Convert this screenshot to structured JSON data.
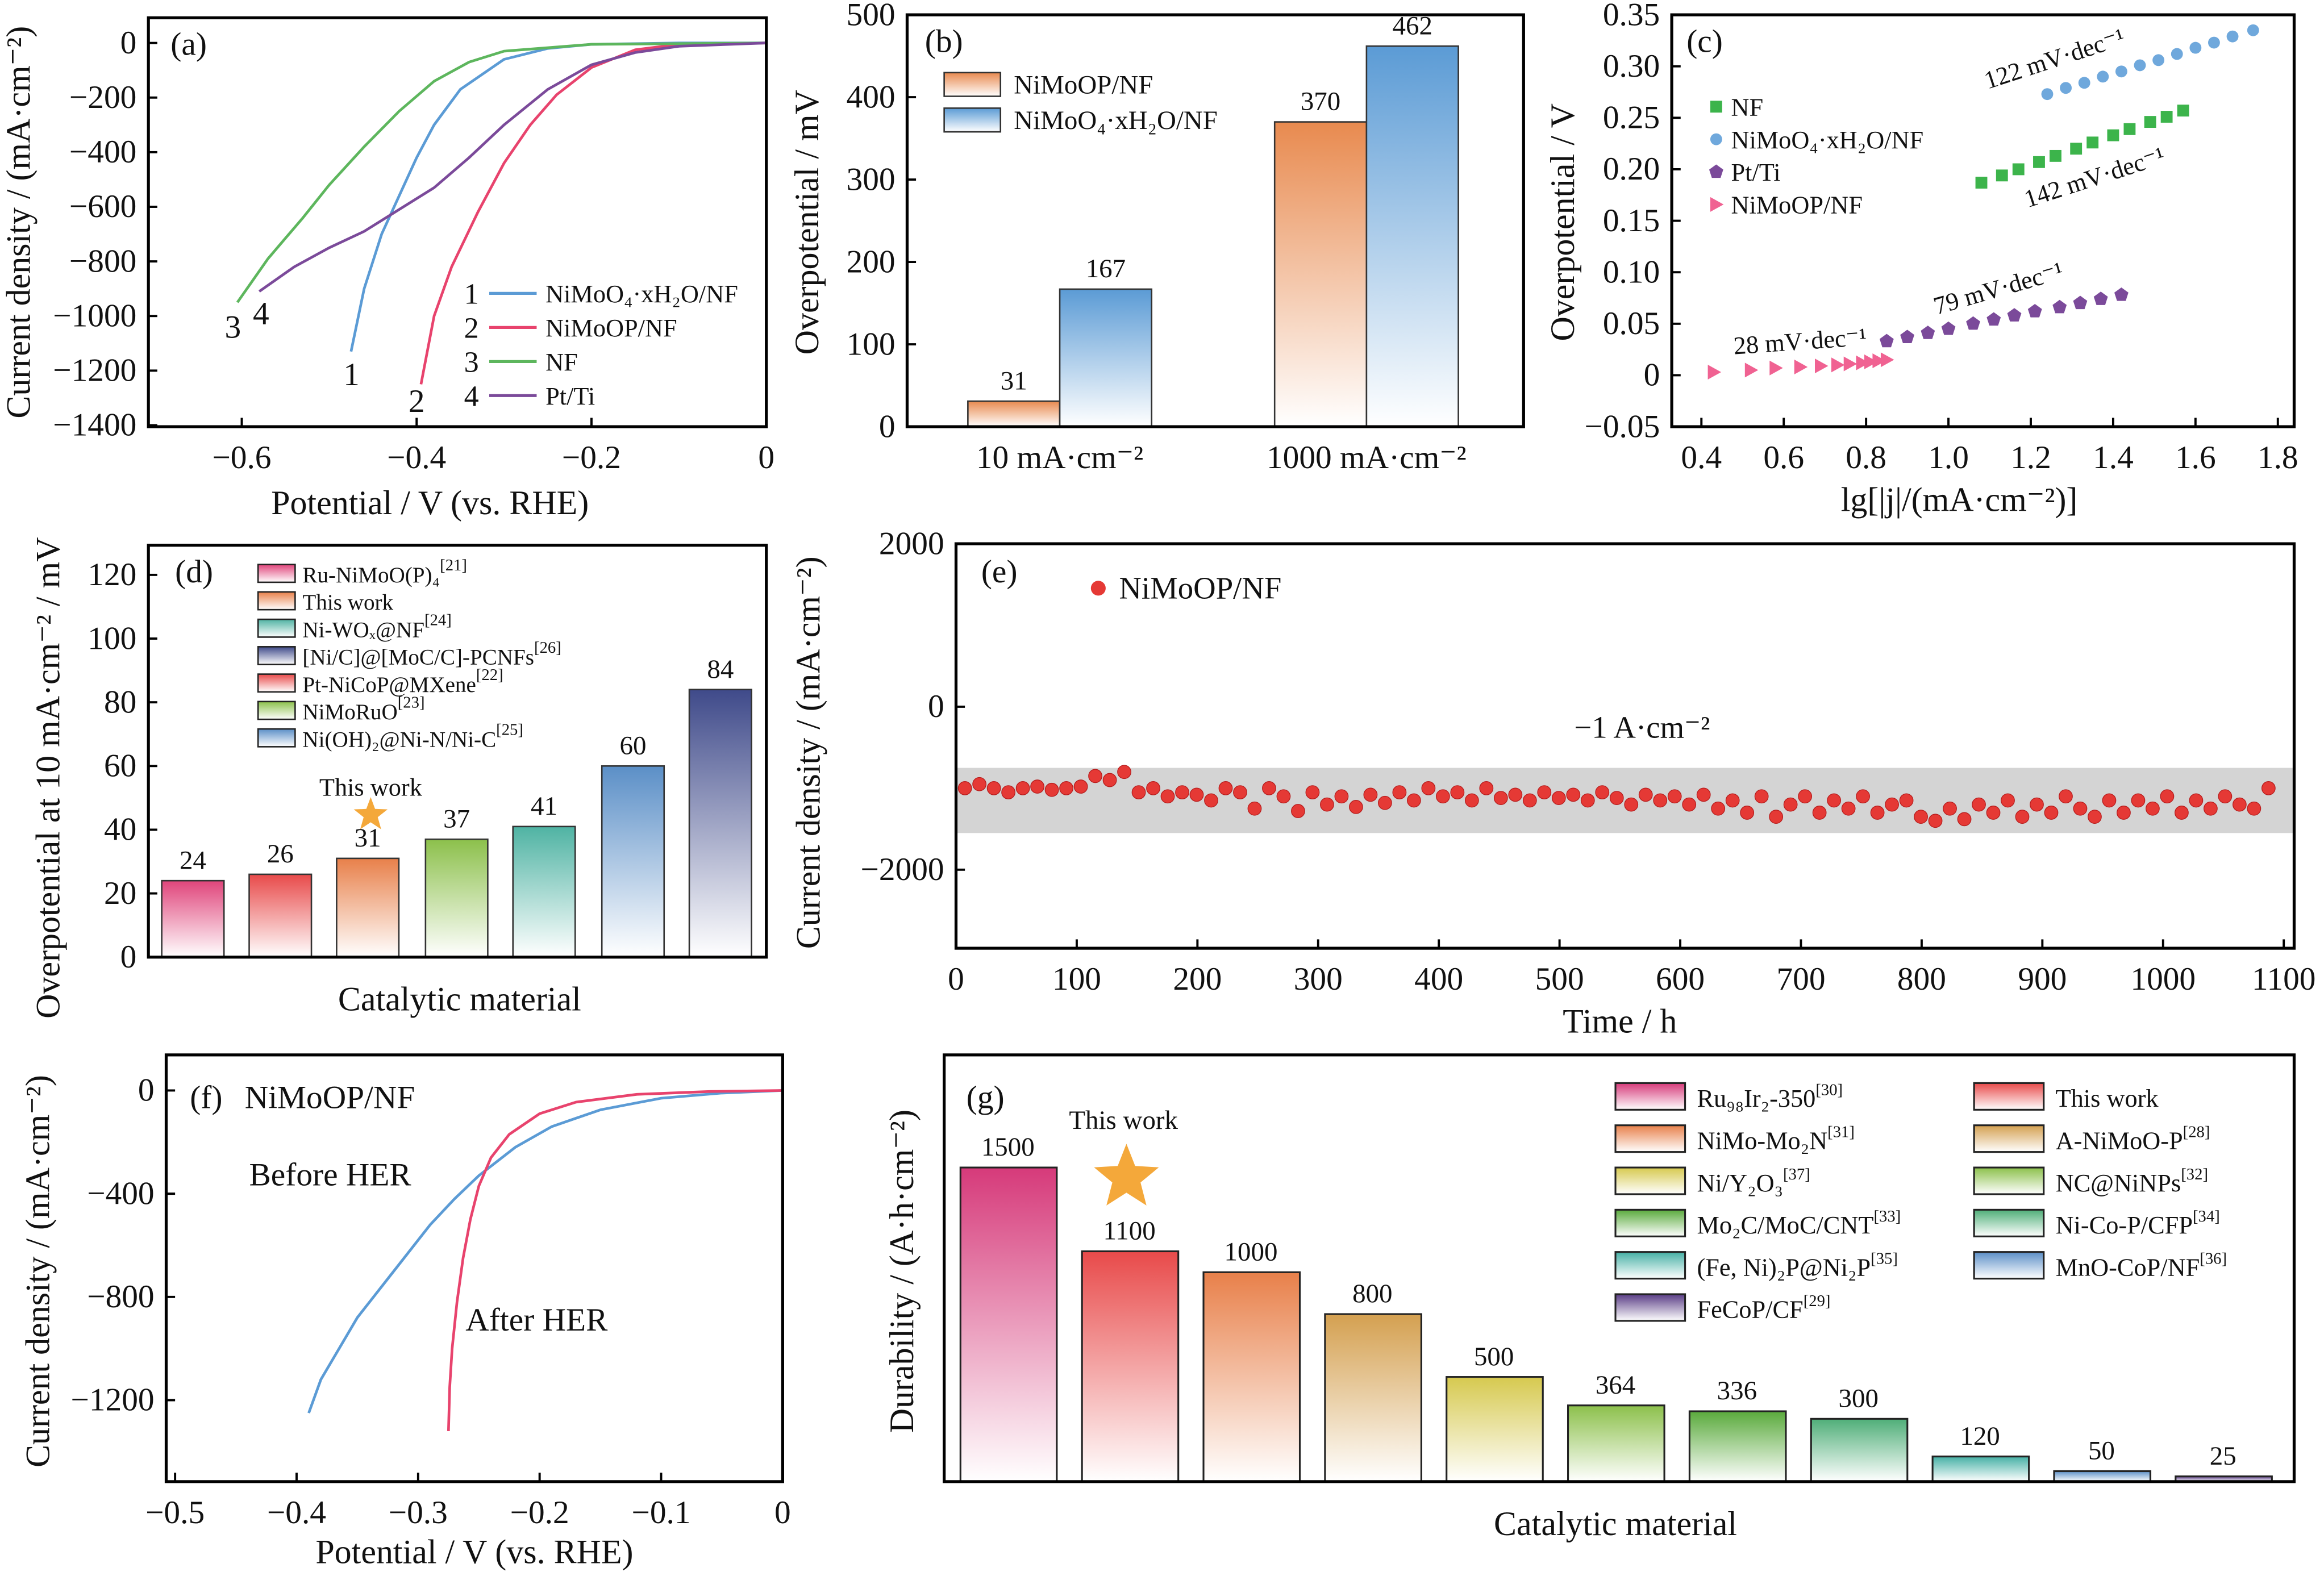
{
  "chart_data": [
    {
      "panel": "(a)",
      "type": "line",
      "xlabel": "Potential / V (vs. RHE)",
      "ylabel": "Current density / (mA·cm⁻²)",
      "xlim": [
        -0.7,
        0
      ],
      "ylim": [
        -1400,
        90
      ],
      "xticks": [
        -0.6,
        -0.4,
        -0.2,
        0
      ],
      "yticks": [
        0,
        -200,
        -400,
        -600,
        -800,
        -1000,
        -1200,
        -1400
      ],
      "series": [
        {
          "name": "NiMoO₄·xH₂O/NF",
          "num": "1",
          "color": "#5b9bd5",
          "points": [
            [
              -0.475,
              -1130
            ],
            [
              -0.46,
              -900
            ],
            [
              -0.44,
              -700
            ],
            [
              -0.42,
              -560
            ],
            [
              -0.4,
              -420
            ],
            [
              -0.38,
              -300
            ],
            [
              -0.35,
              -170
            ],
            [
              -0.3,
              -60
            ],
            [
              -0.25,
              -20
            ],
            [
              -0.2,
              -5
            ],
            [
              -0.1,
              0
            ],
            [
              0,
              0
            ]
          ]
        },
        {
          "name": "NiMoOP/NF",
          "num": "2",
          "color": "#e8436d",
          "points": [
            [
              -0.395,
              -1250
            ],
            [
              -0.38,
              -1000
            ],
            [
              -0.36,
              -820
            ],
            [
              -0.33,
              -620
            ],
            [
              -0.3,
              -440
            ],
            [
              -0.27,
              -300
            ],
            [
              -0.24,
              -190
            ],
            [
              -0.2,
              -90
            ],
            [
              -0.15,
              -25
            ],
            [
              -0.1,
              -5
            ],
            [
              0,
              0
            ]
          ]
        },
        {
          "name": "NF",
          "num": "3",
          "color": "#5db65d",
          "points": [
            [
              -0.605,
              -950
            ],
            [
              -0.57,
              -790
            ],
            [
              -0.53,
              -640
            ],
            [
              -0.5,
              -520
            ],
            [
              -0.46,
              -380
            ],
            [
              -0.42,
              -250
            ],
            [
              -0.38,
              -140
            ],
            [
              -0.34,
              -70
            ],
            [
              -0.3,
              -30
            ],
            [
              -0.2,
              -5
            ],
            [
              0,
              0
            ]
          ]
        },
        {
          "name": "Pt/Ti",
          "num": "4",
          "color": "#7b4a9a",
          "points": [
            [
              -0.58,
              -910
            ],
            [
              -0.54,
              -820
            ],
            [
              -0.5,
              -750
            ],
            [
              -0.46,
              -690
            ],
            [
              -0.42,
              -610
            ],
            [
              -0.38,
              -530
            ],
            [
              -0.34,
              -420
            ],
            [
              -0.3,
              -300
            ],
            [
              -0.25,
              -170
            ],
            [
              -0.2,
              -80
            ],
            [
              -0.15,
              -35
            ],
            [
              -0.1,
              -12
            ],
            [
              0,
              0
            ]
          ]
        }
      ]
    },
    {
      "panel": "(b)",
      "type": "bar",
      "ylabel": "Overpotential / mV",
      "ylim": [
        0,
        500
      ],
      "yticks": [
        0,
        100,
        200,
        300,
        400,
        500
      ],
      "categories": [
        "10 mA·cm⁻²",
        "1000 mA·cm⁻²"
      ],
      "series": [
        {
          "name": "NiMoOP/NF",
          "color": "#e88a4f",
          "values": [
            31,
            370
          ]
        },
        {
          "name": "NiMoO₄·xH₂O/NF",
          "color": "#5b9bd5",
          "values": [
            167,
            462
          ]
        }
      ]
    },
    {
      "panel": "(c)",
      "type": "scatter",
      "xlabel": "lg[|j|/(mA·cm⁻²)]",
      "ylabel": "Overpotential / V",
      "xlim": [
        0.33,
        1.84
      ],
      "ylim": [
        -0.05,
        0.35
      ],
      "xticks": [
        0.4,
        0.6,
        0.8,
        1.0,
        1.2,
        1.4,
        1.6,
        1.8
      ],
      "yticks": [
        -0.05,
        0,
        0.05,
        0.1,
        0.15,
        0.2,
        0.25,
        0.3,
        0.35
      ],
      "series": [
        {
          "name": "NF",
          "marker": "square",
          "color": "#3cb44b",
          "slope": "142 mV·dec⁻¹",
          "points": [
            [
              1.08,
              0.187
            ],
            [
              1.13,
              0.194
            ],
            [
              1.17,
              0.2
            ],
            [
              1.22,
              0.207
            ],
            [
              1.26,
              0.213
            ],
            [
              1.31,
              0.22
            ],
            [
              1.35,
              0.226
            ],
            [
              1.4,
              0.233
            ],
            [
              1.44,
              0.239
            ],
            [
              1.49,
              0.246
            ],
            [
              1.53,
              0.251
            ],
            [
              1.57,
              0.257
            ]
          ]
        },
        {
          "name": "NiMoO₄·xH₂O/NF",
          "marker": "circle",
          "color": "#6fa8dc",
          "slope": "122 mV·dec⁻¹",
          "points": [
            [
              1.24,
              0.273
            ],
            [
              1.285,
              0.279
            ],
            [
              1.33,
              0.284
            ],
            [
              1.375,
              0.29
            ],
            [
              1.42,
              0.295
            ],
            [
              1.465,
              0.301
            ],
            [
              1.51,
              0.306
            ],
            [
              1.555,
              0.312
            ],
            [
              1.6,
              0.318
            ],
            [
              1.645,
              0.323
            ],
            [
              1.69,
              0.329
            ],
            [
              1.74,
              0.335
            ]
          ]
        },
        {
          "name": "Pt/Ti",
          "marker": "pentagon",
          "color": "#7b4a9a",
          "slope": "79 mV·dec⁻¹",
          "points": [
            [
              0.85,
              0.033
            ],
            [
              0.9,
              0.037
            ],
            [
              0.95,
              0.041
            ],
            [
              1.0,
              0.045
            ],
            [
              1.06,
              0.05
            ],
            [
              1.11,
              0.054
            ],
            [
              1.16,
              0.058
            ],
            [
              1.21,
              0.062
            ],
            [
              1.27,
              0.066
            ],
            [
              1.32,
              0.07
            ],
            [
              1.37,
              0.074
            ],
            [
              1.42,
              0.078
            ]
          ]
        },
        {
          "name": "NiMoOP/NF",
          "marker": "triangle-right",
          "color": "#f06292",
          "slope": "28 mV·dec⁻¹",
          "points": [
            [
              0.43,
              0.003
            ],
            [
              0.52,
              0.005
            ],
            [
              0.58,
              0.007
            ],
            [
              0.64,
              0.008
            ],
            [
              0.69,
              0.009
            ],
            [
              0.73,
              0.01
            ],
            [
              0.76,
              0.011
            ],
            [
              0.79,
              0.012
            ],
            [
              0.81,
              0.013
            ],
            [
              0.83,
              0.014
            ],
            [
              0.85,
              0.015
            ]
          ]
        }
      ]
    },
    {
      "panel": "(d)",
      "type": "bar",
      "xlabel": "Catalytic material",
      "ylabel": "Overpotential at 10 mA·cm⁻² / mV",
      "ylim": [
        0,
        129
      ],
      "yticks": [
        0,
        20,
        40,
        60,
        80,
        100,
        120
      ],
      "annotation": "This work",
      "legend": [
        {
          "label": "Ru-NiMoO(P)₄",
          "ref": "[21]",
          "color": "#e0457b"
        },
        {
          "label": "This work",
          "ref": "",
          "color": "#e8804a",
          "highlight": true
        },
        {
          "label": "Ni-WOₓ@NF",
          "ref": "[24]",
          "color": "#4fb3a3"
        },
        {
          "label": "[Ni/C]@[MoC/C]-PCNFs",
          "ref": "[26]",
          "color": "#3f4a8a"
        },
        {
          "label": "Pt-NiCoP@MXene",
          "ref": "[22]",
          "color": "#e84a4a"
        },
        {
          "label": "NiMoRuO",
          "ref": "[23]",
          "color": "#8cc04b"
        },
        {
          "label": "Ni(OH)₂@Ni-N/Ni-C",
          "ref": "[25]",
          "color": "#5b8fc7"
        }
      ],
      "bars": [
        {
          "value": 24,
          "color": "#e0457b"
        },
        {
          "value": 26,
          "color": "#e84a4a"
        },
        {
          "value": 31,
          "color": "#e8804a"
        },
        {
          "value": 37,
          "color": "#8cc04b"
        },
        {
          "value": 41,
          "color": "#4fb3a3"
        },
        {
          "value": 60,
          "color": "#5b8fc7"
        },
        {
          "value": 84,
          "color": "#3f4a8a"
        }
      ]
    },
    {
      "panel": "(e)",
      "type": "scatter",
      "xlabel": "Time / h",
      "ylabel": "Current density / (mA·cm⁻²)",
      "xlim": [
        0,
        1100
      ],
      "ylim": [
        -2950,
        2000
      ],
      "xticks": [
        0,
        100,
        200,
        300,
        400,
        500,
        600,
        700,
        800,
        900,
        1000,
        1100
      ],
      "yticks": [
        2000,
        0,
        -2000
      ],
      "legend": "NiMoOP/NF",
      "annotation": "−1 A·cm⁻²",
      "band": [
        -750,
        -1550
      ],
      "color": "#e53935",
      "time_h": [
        0,
        12,
        24,
        36,
        48,
        60,
        72,
        84,
        96,
        108,
        120,
        132,
        144,
        156,
        168,
        180,
        192,
        204,
        216,
        228,
        240,
        252,
        264,
        276,
        288,
        300,
        312,
        324,
        336,
        348,
        360,
        372,
        384,
        396,
        408,
        420,
        432,
        444,
        456,
        468,
        480,
        492,
        504,
        516,
        528,
        540,
        552,
        564,
        576,
        588,
        600,
        612,
        624,
        636,
        648,
        660,
        672,
        684,
        696,
        708,
        720,
        732,
        744,
        756,
        768,
        780,
        792,
        804,
        816,
        828,
        840,
        852,
        864,
        876,
        888,
        900,
        912,
        924,
        936,
        948,
        960,
        972,
        984,
        996,
        1008,
        1020,
        1032,
        1044,
        1056,
        1068,
        1080
      ],
      "current": [
        -1000,
        -950,
        -1000,
        -1050,
        -1000,
        -980,
        -1020,
        -1000,
        -980,
        -850,
        -900,
        -800,
        -1050,
        -1000,
        -1100,
        -1050,
        -1080,
        -1150,
        -1000,
        -1050,
        -1250,
        -1000,
        -1100,
        -1280,
        -1050,
        -1200,
        -1100,
        -1230,
        -1080,
        -1180,
        -1050,
        -1150,
        -1000,
        -1100,
        -1050,
        -1150,
        -1000,
        -1120,
        -1080,
        -1150,
        -1050,
        -1120,
        -1080,
        -1150,
        -1050,
        -1120,
        -1200,
        -1080,
        -1150,
        -1100,
        -1200,
        -1080,
        -1250,
        -1150,
        -1300,
        -1100,
        -1350,
        -1200,
        -1100,
        -1300,
        -1150,
        -1250,
        -1100,
        -1300,
        -1200,
        -1150,
        -1350,
        -1400,
        -1250,
        -1380,
        -1200,
        -1300,
        -1150,
        -1350,
        -1200,
        -1300,
        -1100,
        -1250,
        -1350,
        -1150,
        -1300,
        -1150,
        -1250,
        -1100,
        -1300,
        -1150,
        -1250,
        -1100,
        -1200,
        -1250,
        -1000
      ]
    },
    {
      "panel": "(f)",
      "type": "line",
      "title": "NiMoOP/NF",
      "xlabel": "Potential / V (vs. RHE)",
      "ylabel": "Current density / (mA·cm⁻²)",
      "xlim": [
        -0.5,
        0
      ],
      "ylim": [
        -1500,
        140
      ],
      "xticks": [
        -0.5,
        -0.4,
        -0.3,
        -0.2,
        -0.1,
        0
      ],
      "yticks": [
        0,
        -400,
        -800,
        -1200
      ],
      "series": [
        {
          "name": "Before HER",
          "color": "#5b9bd5",
          "points": [
            [
              -0.39,
              -1250
            ],
            [
              -0.38,
              -1120
            ],
            [
              -0.365,
              -1000
            ],
            [
              -0.35,
              -880
            ],
            [
              -0.33,
              -760
            ],
            [
              -0.31,
              -640
            ],
            [
              -0.29,
              -520
            ],
            [
              -0.27,
              -420
            ],
            [
              -0.25,
              -330
            ],
            [
              -0.22,
              -220
            ],
            [
              -0.19,
              -140
            ],
            [
              -0.15,
              -75
            ],
            [
              -0.1,
              -30
            ],
            [
              -0.05,
              -10
            ],
            [
              0,
              0
            ]
          ]
        },
        {
          "name": "After HER",
          "color": "#e8436d",
          "points": [
            [
              -0.275,
              -1320
            ],
            [
              -0.274,
              -1150
            ],
            [
              -0.272,
              -1000
            ],
            [
              -0.268,
              -820
            ],
            [
              -0.263,
              -650
            ],
            [
              -0.257,
              -500
            ],
            [
              -0.25,
              -370
            ],
            [
              -0.24,
              -260
            ],
            [
              -0.225,
              -170
            ],
            [
              -0.2,
              -90
            ],
            [
              -0.17,
              -45
            ],
            [
              -0.12,
              -15
            ],
            [
              -0.06,
              -4
            ],
            [
              0,
              0
            ]
          ]
        }
      ]
    },
    {
      "panel": "(g)",
      "type": "bar",
      "xlabel": "Catalytic material",
      "ylabel": "Durability / (A·h·cm⁻²)",
      "ylim": [
        0,
        2040
      ],
      "annotation": "This work",
      "legend": [
        {
          "label": "Ru₉₈Ir₂-350",
          "ref": "[30]",
          "color": "#d63a7a"
        },
        {
          "label": "This work",
          "ref": "",
          "color": "#e84a4a",
          "highlight": true
        },
        {
          "label": "NiMo-Mo₂N",
          "ref": "[31]",
          "color": "#e8804a"
        },
        {
          "label": "A-NiMoO-P",
          "ref": "[28]",
          "color": "#d4a050"
        },
        {
          "label": "Ni/Y₂O₃",
          "ref": "[37]",
          "color": "#d6c94f"
        },
        {
          "label": "NC@NiNPs",
          "ref": "[32]",
          "color": "#8cc04b"
        },
        {
          "label": "Mo₂C/MoC/CNT",
          "ref": "[33]",
          "color": "#5aaa3c"
        },
        {
          "label": "Ni-Co-P/CFP",
          "ref": "[34]",
          "color": "#4fae78"
        },
        {
          "label": "(Fe, Ni)₂P@Ni₂P",
          "ref": "[35]",
          "color": "#45b0a5"
        },
        {
          "label": "MnO-CoP/NF",
          "ref": "[36]",
          "color": "#5b8fc7"
        },
        {
          "label": "FeCoP/CF",
          "ref": "[29]",
          "color": "#5a3d86"
        }
      ],
      "bars": [
        {
          "value": 1500,
          "color": "#d63a7a"
        },
        {
          "value": 1100,
          "color": "#e84a4a"
        },
        {
          "value": 1000,
          "color": "#e8804a"
        },
        {
          "value": 800,
          "color": "#d4a050"
        },
        {
          "value": 500,
          "color": "#d6c94f"
        },
        {
          "value": 364,
          "color": "#8cc04b"
        },
        {
          "value": 336,
          "color": "#5aaa3c"
        },
        {
          "value": 300,
          "color": "#4fae78"
        },
        {
          "value": 120,
          "color": "#45b0a5"
        },
        {
          "value": 50,
          "color": "#5b8fc7"
        },
        {
          "value": 25,
          "color": "#5a3d86"
        }
      ]
    }
  ]
}
